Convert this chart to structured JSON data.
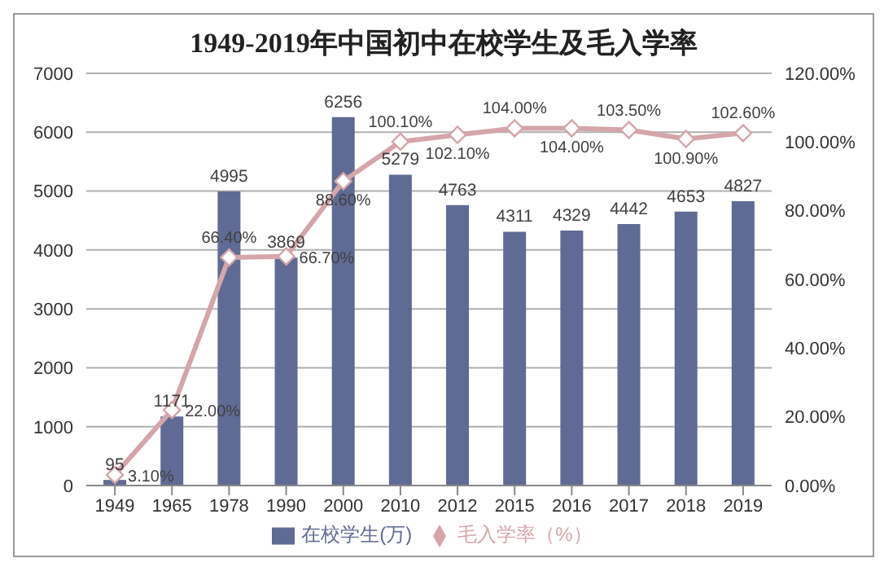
{
  "chart_data": {
    "type": "bar",
    "title": "1949-2019年中国初中在校学生及毛入学率",
    "categories": [
      "1949",
      "1965",
      "1978",
      "1990",
      "2000",
      "2010",
      "2012",
      "2015",
      "2016",
      "2017",
      "2018",
      "2019"
    ],
    "series": [
      {
        "name": "在校学生(万)",
        "color": "#5f6b94",
        "values": [
          95,
          1171,
          4995,
          3869,
          6256,
          5279,
          4763,
          4311,
          4329,
          4442,
          4653,
          4827
        ],
        "value_labels": [
          "95",
          "1171",
          "4995",
          "3869",
          "6256",
          "5279",
          "4763",
          "4311",
          "4329",
          "4442",
          "4653",
          "4827"
        ]
      },
      {
        "name": "毛入学率（%）",
        "type": "line",
        "axis": "y2",
        "color": "#d4a5a9",
        "values": [
          3.1,
          22.0,
          66.4,
          66.7,
          88.6,
          100.1,
          102.1,
          104.0,
          104.0,
          103.5,
          100.9,
          102.6
        ],
        "value_labels": [
          "3.10%",
          "22.00%",
          "66.40%",
          "66.70%",
          "88.60%",
          "100.10%",
          "102.10%",
          "104.00%",
          "104.00%",
          "103.50%",
          "100.90%",
          "102.60%"
        ]
      }
    ],
    "ylim": [
      0,
      7000
    ],
    "yticks": [
      0,
      1000,
      2000,
      3000,
      4000,
      5000,
      6000,
      7000
    ],
    "y2lim": [
      0,
      120
    ],
    "y2ticks": [
      {
        "value": 0,
        "label": "0.00%"
      },
      {
        "value": 20,
        "label": "20.00%"
      },
      {
        "value": 40,
        "label": "40.00%"
      },
      {
        "value": 60,
        "label": "60.00%"
      },
      {
        "value": 80,
        "label": "80.00%"
      },
      {
        "value": 100,
        "label": "100.00%"
      },
      {
        "value": 120,
        "label": "120.00%"
      }
    ],
    "grid": "y",
    "legend": "bottom",
    "marker": "diamond",
    "line_style": "solid"
  }
}
